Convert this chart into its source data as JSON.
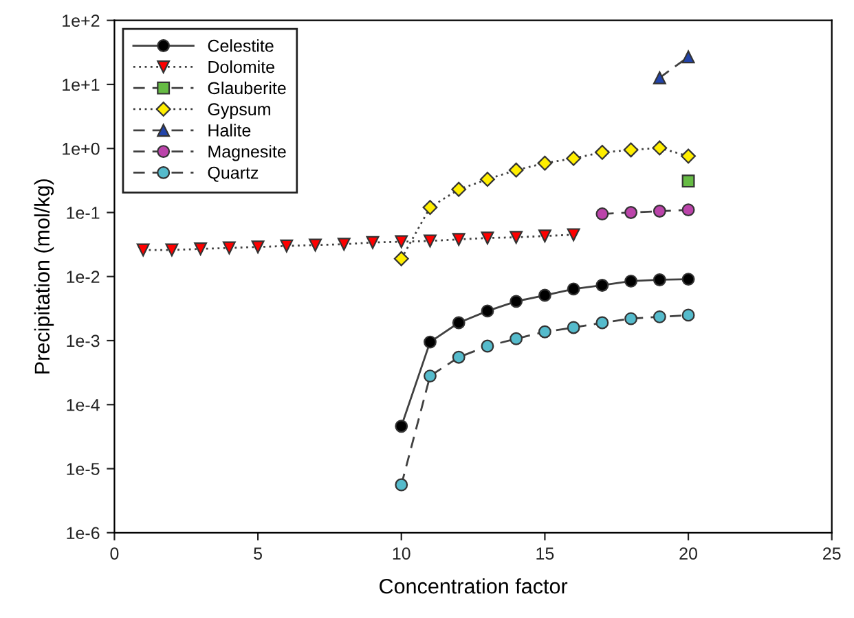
{
  "chart_data": {
    "type": "line",
    "xlabel": "Concentration factor",
    "ylabel": "Precipitation (mol/kg)",
    "log": "y",
    "xlim": [
      0,
      25
    ],
    "xticks": [
      0,
      5,
      10,
      15,
      20,
      25
    ],
    "ylim": [
      1e-06,
      100
    ],
    "yticks": [
      {
        "value": 1e-06,
        "label": "1e-6"
      },
      {
        "value": 1e-05,
        "label": "1e-5"
      },
      {
        "value": 0.0001,
        "label": "1e-4"
      },
      {
        "value": 0.001,
        "label": "1e-3"
      },
      {
        "value": 0.01,
        "label": "1e-2"
      },
      {
        "value": 0.1,
        "label": "1e-1"
      },
      {
        "value": 1,
        "label": "1e+0"
      },
      {
        "value": 10,
        "label": "1e+1"
      },
      {
        "value": 100,
        "label": "1e+2"
      }
    ],
    "grid": false,
    "legend": "top left",
    "series": [
      {
        "name": "Celestite",
        "color": "#000000",
        "marker": "circle",
        "line_style": "solid",
        "x": [
          10,
          11,
          12,
          13,
          14,
          15,
          16,
          17,
          18,
          19,
          20
        ],
        "values": [
          4.6e-05,
          0.00095,
          0.0019,
          0.0029,
          0.0041,
          0.0051,
          0.0064,
          0.0073,
          0.0085,
          0.0089,
          0.0091
        ]
      },
      {
        "name": "Dolomite",
        "color": "#ff0000",
        "marker": "triangle-down",
        "line_style": "dotted",
        "x": [
          1,
          2,
          3,
          4,
          5,
          6,
          7,
          8,
          9,
          10,
          11,
          12,
          13,
          14,
          15,
          16
        ],
        "values": [
          0.026,
          0.026,
          0.027,
          0.028,
          0.029,
          0.03,
          0.031,
          0.032,
          0.034,
          0.035,
          0.036,
          0.038,
          0.04,
          0.041,
          0.043,
          0.045
        ]
      },
      {
        "name": "Glauberite",
        "color": "#66bb44",
        "marker": "square",
        "line_style": "dashed",
        "x": [
          20
        ],
        "values": [
          0.31
        ]
      },
      {
        "name": "Gypsum",
        "color": "#ffee00",
        "marker": "diamond",
        "line_style": "dotted",
        "x": [
          10,
          11,
          12,
          13,
          14,
          15,
          16,
          17,
          18,
          19,
          20
        ],
        "values": [
          0.019,
          0.12,
          0.23,
          0.33,
          0.46,
          0.59,
          0.7,
          0.87,
          0.95,
          1.02,
          0.76
        ]
      },
      {
        "name": "Halite",
        "color": "#2244aa",
        "marker": "triangle",
        "line_style": "dashed",
        "x": [
          19,
          20
        ],
        "values": [
          12.7,
          27
        ]
      },
      {
        "name": "Magnesite",
        "color": "#bb44aa",
        "marker": "circle",
        "line_style": "dashed",
        "x": [
          17,
          18,
          19,
          20
        ],
        "values": [
          0.095,
          0.1,
          0.105,
          0.11
        ]
      },
      {
        "name": "Quartz",
        "color": "#55bbcc",
        "marker": "circle",
        "line_style": "dashed",
        "x": [
          10,
          11,
          12,
          13,
          14,
          15,
          16,
          17,
          18,
          19,
          20
        ],
        "values": [
          5.6e-06,
          0.00028,
          0.00055,
          0.00082,
          0.00107,
          0.00137,
          0.0016,
          0.0019,
          0.0022,
          0.00235,
          0.0025
        ]
      }
    ]
  }
}
